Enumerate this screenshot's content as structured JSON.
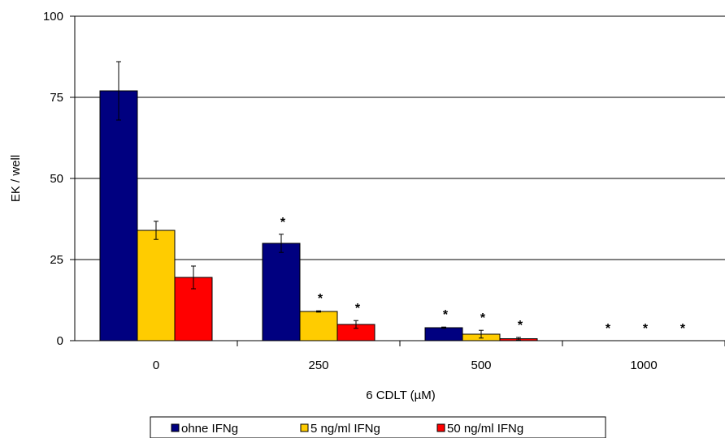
{
  "chart_data": {
    "type": "bar",
    "xlabel": "6 CDLT (µM)",
    "ylabel": "EK / well",
    "ylim": [
      0,
      100
    ],
    "yticks": [
      0,
      25,
      50,
      75,
      100
    ],
    "grid": true,
    "legend_position": "bottom",
    "categories": [
      "0",
      "250",
      "500",
      "1000"
    ],
    "series": [
      {
        "name": "ohne IFNg",
        "color": "#000080",
        "values": [
          77,
          30,
          4,
          0
        ],
        "errors": [
          9,
          2.8,
          0.2,
          0
        ],
        "significance": [
          "",
          "*",
          "*",
          "*"
        ]
      },
      {
        "name": "5 ng/ml IFNg",
        "color": "#FFCC00",
        "values": [
          34,
          9,
          2,
          0
        ],
        "errors": [
          2.8,
          0.2,
          1.2,
          0
        ],
        "significance": [
          "",
          "*",
          "*",
          "*"
        ]
      },
      {
        "name": "50 ng/ml IFNg",
        "color": "#FF0000",
        "values": [
          19.5,
          5,
          0.6,
          0
        ],
        "errors": [
          3.5,
          1.2,
          0.4,
          0
        ],
        "significance": [
          "",
          "*",
          "*",
          "*"
        ]
      }
    ]
  }
}
